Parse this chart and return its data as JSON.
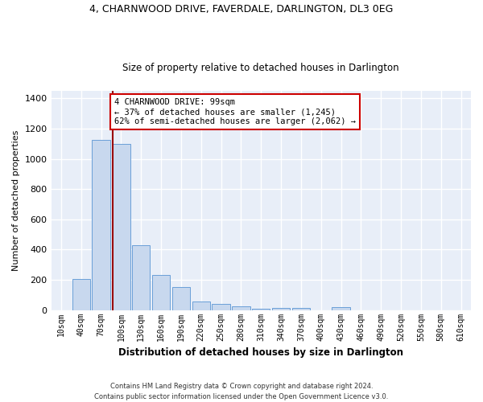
{
  "title": "4, CHARNWOOD DRIVE, FAVERDALE, DARLINGTON, DL3 0EG",
  "subtitle": "Size of property relative to detached houses in Darlington",
  "xlabel": "Distribution of detached houses by size in Darlington",
  "ylabel": "Number of detached properties",
  "bar_color": "#c8d8ee",
  "bar_edge_color": "#6a9fd8",
  "background_color": "#e8eef8",
  "grid_color": "#ffffff",
  "annotation_line_color": "#990000",
  "annotation_box_color": "#cc0000",
  "annotation_text": "4 CHARNWOOD DRIVE: 99sqm\n← 37% of detached houses are smaller (1,245)\n62% of semi-detached houses are larger (2,062) →",
  "footer_text": "Contains HM Land Registry data © Crown copyright and database right 2024.\nContains public sector information licensed under the Open Government Licence v3.0.",
  "categories": [
    "10sqm",
    "40sqm",
    "70sqm",
    "100sqm",
    "130sqm",
    "160sqm",
    "190sqm",
    "220sqm",
    "250sqm",
    "280sqm",
    "310sqm",
    "340sqm",
    "370sqm",
    "400sqm",
    "430sqm",
    "460sqm",
    "490sqm",
    "520sqm",
    "550sqm",
    "580sqm",
    "610sqm"
  ],
  "values": [
    0,
    207,
    1125,
    1100,
    430,
    232,
    150,
    58,
    38,
    25,
    10,
    15,
    15,
    0,
    18,
    0,
    0,
    0,
    0,
    0,
    0
  ],
  "ylim": [
    0,
    1450
  ],
  "yticks": [
    0,
    200,
    400,
    600,
    800,
    1000,
    1200,
    1400
  ]
}
